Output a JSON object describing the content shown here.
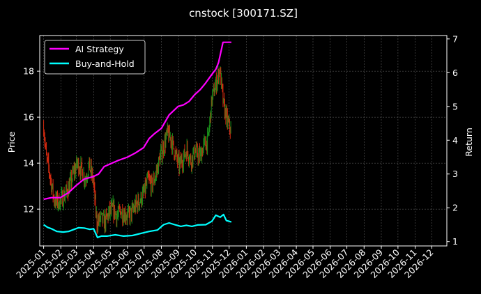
{
  "chart_data": {
    "type": "line",
    "title": "cnstock [300171.SZ]",
    "ylabel_left": "Price",
    "ylabel_right": "Return",
    "y_left_range": [
      10.4,
      19.55
    ],
    "y_left_ticks": [
      12,
      14,
      16,
      18
    ],
    "y_right_range": [
      0.87,
      7.1
    ],
    "y_right_ticks": [
      1,
      2,
      3,
      4,
      5,
      6,
      7
    ],
    "x_range": [
      "2024-12-25",
      "2026-12-28"
    ],
    "x_ticks": [
      "2025-01",
      "2025-02",
      "2025-03",
      "2025-04",
      "2025-05",
      "2025-06",
      "2025-07",
      "2025-08",
      "2025-09",
      "2025-10",
      "2025-11",
      "2025-12",
      "2026-01",
      "2026-02",
      "2026-03",
      "2026-04",
      "2026-05",
      "2026-06",
      "2026-07",
      "2026-08",
      "2026-09",
      "2026-10",
      "2026-11",
      "2026-12"
    ],
    "grid": true,
    "legend_position": "top-left",
    "colors": {
      "ai": "#ff00ff",
      "bh": "#00ffff",
      "up": "#1a8f1a",
      "down": "#d42a10",
      "background": "#000000"
    },
    "price_series": [
      [
        "2025-01-01",
        15.6
      ],
      [
        "2025-01-06",
        14.2
      ],
      [
        "2025-01-10",
        13.8
      ],
      [
        "2025-01-15",
        13.1
      ],
      [
        "2025-01-20",
        12.4
      ],
      [
        "2025-01-27",
        12.3
      ],
      [
        "2025-02-05",
        12.5
      ],
      [
        "2025-02-10",
        12.7
      ],
      [
        "2025-02-17",
        13.0
      ],
      [
        "2025-02-24",
        13.6
      ],
      [
        "2025-03-03",
        14.0
      ],
      [
        "2025-03-10",
        13.7
      ],
      [
        "2025-03-17",
        13.3
      ],
      [
        "2025-03-24",
        13.9
      ],
      [
        "2025-03-31",
        13.3
      ],
      [
        "2025-04-07",
        11.4
      ],
      [
        "2025-04-14",
        11.6
      ],
      [
        "2025-04-21",
        11.4
      ],
      [
        "2025-04-28",
        11.8
      ],
      [
        "2025-05-06",
        12.0
      ],
      [
        "2025-05-13",
        11.7
      ],
      [
        "2025-05-20",
        11.9
      ],
      [
        "2025-05-27",
        11.8
      ],
      [
        "2025-06-03",
        11.7
      ],
      [
        "2025-06-10",
        11.9
      ],
      [
        "2025-06-17",
        12.2
      ],
      [
        "2025-06-24",
        12.4
      ],
      [
        "2025-07-01",
        12.7
      ],
      [
        "2025-07-08",
        13.3
      ],
      [
        "2025-07-15",
        13.0
      ],
      [
        "2025-07-22",
        13.5
      ],
      [
        "2025-07-29",
        14.2
      ],
      [
        "2025-08-05",
        14.7
      ],
      [
        "2025-08-12",
        15.3
      ],
      [
        "2025-08-19",
        15.0
      ],
      [
        "2025-08-26",
        14.4
      ],
      [
        "2025-09-02",
        13.9
      ],
      [
        "2025-09-09",
        14.2
      ],
      [
        "2025-09-16",
        14.6
      ],
      [
        "2025-09-23",
        14.1
      ],
      [
        "2025-09-30",
        14.5
      ],
      [
        "2025-10-10",
        14.3
      ],
      [
        "2025-10-17",
        14.8
      ],
      [
        "2025-10-24",
        15.0
      ],
      [
        "2025-10-31",
        16.8
      ],
      [
        "2025-11-07",
        17.4
      ],
      [
        "2025-11-14",
        18.1
      ],
      [
        "2025-11-21",
        16.5
      ],
      [
        "2025-11-28",
        15.8
      ],
      [
        "2025-12-05",
        15.4
      ]
    ],
    "series": [
      {
        "name": "AI Strategy",
        "points": [
          [
            "2025-01-01",
            2.25
          ],
          [
            "2025-01-15",
            2.3
          ],
          [
            "2025-01-31",
            2.3
          ],
          [
            "2025-02-15",
            2.45
          ],
          [
            "2025-02-28",
            2.65
          ],
          [
            "2025-03-15",
            2.85
          ],
          [
            "2025-03-31",
            2.92
          ],
          [
            "2025-04-10",
            3.0
          ],
          [
            "2025-04-20",
            3.22
          ],
          [
            "2025-05-01",
            3.3
          ],
          [
            "2025-05-15",
            3.4
          ],
          [
            "2025-06-01",
            3.5
          ],
          [
            "2025-06-15",
            3.62
          ],
          [
            "2025-06-30",
            3.78
          ],
          [
            "2025-07-10",
            4.05
          ],
          [
            "2025-07-20",
            4.2
          ],
          [
            "2025-08-01",
            4.35
          ],
          [
            "2025-08-15",
            4.75
          ],
          [
            "2025-08-31",
            5.0
          ],
          [
            "2025-09-10",
            5.05
          ],
          [
            "2025-09-20",
            5.15
          ],
          [
            "2025-09-30",
            5.35
          ],
          [
            "2025-10-10",
            5.5
          ],
          [
            "2025-10-20",
            5.7
          ],
          [
            "2025-10-31",
            5.95
          ],
          [
            "2025-11-07",
            6.1
          ],
          [
            "2025-11-12",
            6.3
          ],
          [
            "2025-11-18",
            6.75
          ],
          [
            "2025-11-20",
            6.9
          ],
          [
            "2025-12-05",
            6.9
          ]
        ]
      },
      {
        "name": "Buy-and-Hold",
        "points": [
          [
            "2025-01-01",
            1.5
          ],
          [
            "2025-01-08",
            1.42
          ],
          [
            "2025-01-15",
            1.38
          ],
          [
            "2025-01-25",
            1.3
          ],
          [
            "2025-02-05",
            1.28
          ],
          [
            "2025-02-15",
            1.3
          ],
          [
            "2025-02-25",
            1.36
          ],
          [
            "2025-03-05",
            1.41
          ],
          [
            "2025-03-15",
            1.4
          ],
          [
            "2025-03-25",
            1.36
          ],
          [
            "2025-04-01",
            1.38
          ],
          [
            "2025-04-08",
            1.12
          ],
          [
            "2025-04-15",
            1.16
          ],
          [
            "2025-04-25",
            1.16
          ],
          [
            "2025-05-10",
            1.2
          ],
          [
            "2025-05-25",
            1.16
          ],
          [
            "2025-06-10",
            1.18
          ],
          [
            "2025-06-25",
            1.24
          ],
          [
            "2025-07-10",
            1.3
          ],
          [
            "2025-07-25",
            1.34
          ],
          [
            "2025-08-05",
            1.5
          ],
          [
            "2025-08-15",
            1.55
          ],
          [
            "2025-08-25",
            1.5
          ],
          [
            "2025-09-05",
            1.45
          ],
          [
            "2025-09-15",
            1.48
          ],
          [
            "2025-09-25",
            1.45
          ],
          [
            "2025-10-05",
            1.49
          ],
          [
            "2025-10-20",
            1.5
          ],
          [
            "2025-10-31",
            1.6
          ],
          [
            "2025-11-07",
            1.78
          ],
          [
            "2025-11-15",
            1.72
          ],
          [
            "2025-11-21",
            1.8
          ],
          [
            "2025-11-26",
            1.62
          ],
          [
            "2025-12-05",
            1.58
          ]
        ]
      }
    ]
  }
}
